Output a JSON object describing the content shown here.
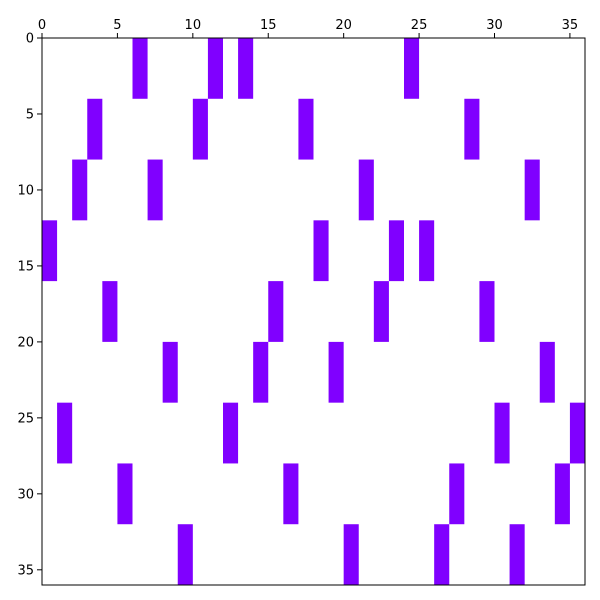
{
  "chart_data": {
    "type": "heatmap",
    "title": "",
    "xlabel": "",
    "ylabel": "",
    "xlim": [
      0,
      36
    ],
    "ylim": [
      36,
      0
    ],
    "x_ticks": [
      0,
      5,
      10,
      15,
      20,
      25,
      30,
      35
    ],
    "y_ticks": [
      0,
      5,
      10,
      15,
      20,
      25,
      30,
      35
    ],
    "x_tick_position": "top",
    "y_axis_inverted": true,
    "grid": false,
    "legend": "none",
    "fill_color": "#8000ff",
    "background_color": "#ffffff",
    "cell_height_rows": 4,
    "cells": [
      {
        "x": 6,
        "y": 0
      },
      {
        "x": 11,
        "y": 0
      },
      {
        "x": 13,
        "y": 0
      },
      {
        "x": 24,
        "y": 0
      },
      {
        "x": 3,
        "y": 4
      },
      {
        "x": 10,
        "y": 4
      },
      {
        "x": 17,
        "y": 4
      },
      {
        "x": 28,
        "y": 4
      },
      {
        "x": 2,
        "y": 8
      },
      {
        "x": 7,
        "y": 8
      },
      {
        "x": 21,
        "y": 8
      },
      {
        "x": 32,
        "y": 8
      },
      {
        "x": 0,
        "y": 12
      },
      {
        "x": 18,
        "y": 12
      },
      {
        "x": 23,
        "y": 12
      },
      {
        "x": 25,
        "y": 12
      },
      {
        "x": 4,
        "y": 16
      },
      {
        "x": 15,
        "y": 16
      },
      {
        "x": 22,
        "y": 16
      },
      {
        "x": 29,
        "y": 16
      },
      {
        "x": 8,
        "y": 20
      },
      {
        "x": 14,
        "y": 20
      },
      {
        "x": 19,
        "y": 20
      },
      {
        "x": 33,
        "y": 20
      },
      {
        "x": 1,
        "y": 24
      },
      {
        "x": 12,
        "y": 24
      },
      {
        "x": 30,
        "y": 24
      },
      {
        "x": 35,
        "y": 24
      },
      {
        "x": 5,
        "y": 28
      },
      {
        "x": 16,
        "y": 28
      },
      {
        "x": 27,
        "y": 28
      },
      {
        "x": 34,
        "y": 28
      },
      {
        "x": 9,
        "y": 32
      },
      {
        "x": 20,
        "y": 32
      },
      {
        "x": 26,
        "y": 32
      },
      {
        "x": 31,
        "y": 32
      }
    ]
  }
}
